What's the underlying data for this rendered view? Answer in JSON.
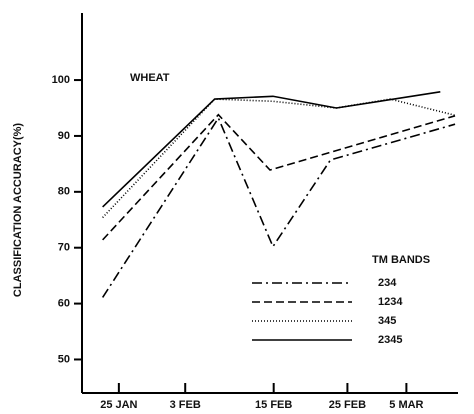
{
  "chart_data": {
    "type": "line",
    "y_label": "CLASSIFICATION ACCURACY(%)",
    "annotation": "WHEAT",
    "legend_title": "TM BANDS",
    "xlim": [
      20,
      71
    ],
    "xticks": [
      {
        "value": 25,
        "label": "25 JAN"
      },
      {
        "value": 34,
        "label": "3 FEB"
      },
      {
        "value": 46,
        "label": "15 FEB"
      },
      {
        "value": 56,
        "label": "25 FEB"
      },
      {
        "value": 64,
        "label": "5 MAR"
      }
    ],
    "ylim": [
      44,
      112
    ],
    "yticks": [
      50,
      60,
      70,
      80,
      90,
      100
    ],
    "series": [
      {
        "name": "234",
        "color": "#000000",
        "dash": "dash-dot",
        "x": [
          22.8,
          38.5,
          45.9,
          53.7,
          70.6
        ],
        "values": [
          61.1,
          93.2,
          70.2,
          85.7,
          92.1
        ]
      },
      {
        "name": "1234",
        "color": "#000000",
        "dash": "dash",
        "x": [
          22.8,
          38.5,
          45.5,
          70.6
        ],
        "values": [
          71.4,
          93.8,
          83.9,
          93.6
        ]
      },
      {
        "name": "345",
        "color": "#000000",
        "dash": "dot",
        "x": [
          22.8,
          38,
          45.9,
          54.5,
          61.8,
          70.6
        ],
        "values": [
          75.4,
          96.6,
          96.2,
          95,
          96.6,
          93.7
        ]
      },
      {
        "name": "2345",
        "color": "#000000",
        "dash": "solid",
        "x": [
          22.8,
          38,
          45.9,
          54.5,
          68.6
        ],
        "values": [
          77.3,
          96.6,
          97.1,
          95,
          97.9
        ]
      }
    ]
  }
}
